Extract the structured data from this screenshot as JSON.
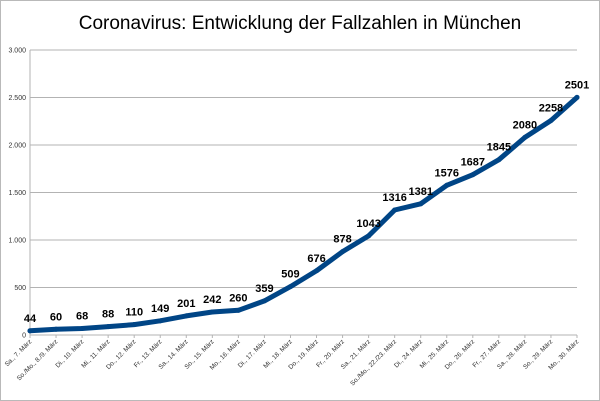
{
  "chart_data": {
    "type": "line",
    "title": "Coronavirus: Entwicklung der Fallzahlen in München",
    "xlabel": "",
    "ylabel": "",
    "ylim": [
      0,
      3000
    ],
    "yticks": [
      0,
      500,
      1000,
      1500,
      2000,
      2500,
      3000
    ],
    "ytick_labels": [
      "0",
      "500",
      "1.000",
      "1.500",
      "2.000",
      "2.500",
      "3.000"
    ],
    "grid": true,
    "legend": "none",
    "categories": [
      "Sa., 7. März",
      "So./Mo., 8./9. März",
      "Di., 10. März",
      "Mi., 11. März",
      "Do., 12. März",
      "Fr., 13. März",
      "Sa., 14. März",
      "So., 15. März",
      "Mo., 16. März",
      "Di., 17. März",
      "Mi., 18. März",
      "Do., 19. März",
      "Fr., 20. März",
      "Sa., 21. März",
      "So./Mo., 22./23. März",
      "Di., 24. März",
      "Mi., 25. März",
      "Do., 26. März",
      "Fr., 27. März",
      "Sa., 28. März",
      "So., 29. März",
      "Mo., 30. März"
    ],
    "series": [
      {
        "values": [
          44,
          60,
          68,
          88,
          110,
          149,
          201,
          242,
          260,
          359,
          509,
          676,
          878,
          1043,
          1316,
          1381,
          1576,
          1687,
          1845,
          2080,
          2258,
          2501
        ],
        "color": "#004586"
      }
    ]
  }
}
